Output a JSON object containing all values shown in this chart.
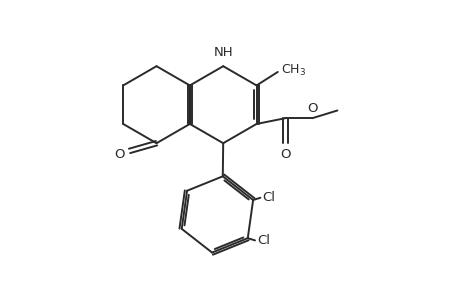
{
  "bg_color": "#ffffff",
  "line_color": "#2a2a2a",
  "line_width": 1.4,
  "font_size": 9.5,
  "fig_width": 4.6,
  "fig_height": 3.0,
  "dpi": 100,
  "xlim": [
    0,
    10
  ],
  "ylim": [
    0,
    6.5
  ]
}
